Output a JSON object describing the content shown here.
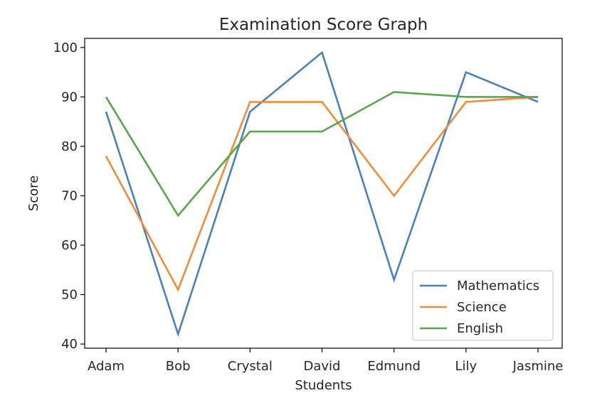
{
  "chart_data": {
    "type": "line",
    "title": "Examination Score Graph",
    "xlabel": "Students",
    "ylabel": "Score",
    "categories": [
      "Adam",
      "Bob",
      "Crystal",
      "David",
      "Edmund",
      "Lily",
      "Jasmine"
    ],
    "series": [
      {
        "name": "Mathematics",
        "color": "#4c80b8",
        "values": [
          87,
          42,
          87,
          99,
          53,
          95,
          89
        ]
      },
      {
        "name": "Science",
        "color": "#f08c3c",
        "values": [
          78,
          51,
          89,
          89,
          70,
          89,
          90
        ]
      },
      {
        "name": "English",
        "color": "#5aa64a",
        "values": [
          90,
          66,
          83,
          83,
          91,
          90,
          90
        ]
      }
    ],
    "ylim": [
      39.15,
      101.85
    ],
    "yticks": [
      40,
      50,
      60,
      70,
      80,
      90,
      100
    ],
    "grid": false,
    "legend_position": "lower-right"
  }
}
